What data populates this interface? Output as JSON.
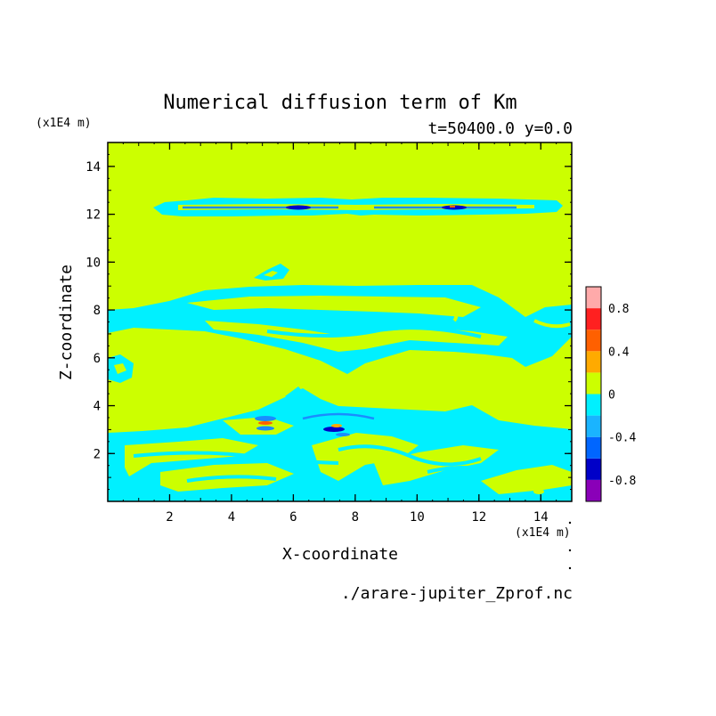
{
  "chart_data": {
    "type": "heatmap",
    "title": "Numerical diffusion term of Km",
    "subtitle": "t=50400.0 y=0.0",
    "xlabel": "X-coordinate",
    "ylabel": "Z-coordinate",
    "x_unit": "(x1E4 m)",
    "y_unit": "(x1E4 m)",
    "source_file": "./arare-jupiter_Zprof.nc",
    "xlim": [
      0,
      15
    ],
    "ylim": [
      0,
      15
    ],
    "x_ticks": [
      2,
      4,
      6,
      8,
      10,
      12,
      14
    ],
    "y_ticks": [
      2,
      4,
      6,
      8,
      10,
      12,
      14
    ],
    "colorbar": {
      "levels": [
        -1.0,
        -0.8,
        -0.6,
        -0.4,
        -0.2,
        0.0,
        0.2,
        0.4,
        0.6,
        0.8,
        1.0
      ],
      "colors": [
        "#8a00b8",
        "#0000c8",
        "#0066ff",
        "#1ab4ff",
        "#00f0ff",
        "#ccff00",
        "#ffaa00",
        "#ff6000",
        "#ff2020",
        "#ffaaaa"
      ],
      "tick_labels": [
        "-0.8",
        "-0.4",
        "0",
        "0.4",
        "0.8"
      ],
      "tick_values": [
        -0.8,
        -0.4,
        0.0,
        0.4,
        0.8
      ]
    },
    "background_value_color": "#ccff00",
    "negative_band_color": "#00f0ff",
    "features": [
      {
        "region": "band",
        "x": [
          1.5,
          14.7
        ],
        "z": [
          11.8,
          12.6
        ],
        "value_range": [
          -0.8,
          0.0
        ]
      },
      {
        "region": "band",
        "x": [
          0.0,
          15.0
        ],
        "z": [
          5.5,
          9.0
        ],
        "value_range": [
          -0.2,
          0.0
        ]
      },
      {
        "region": "band",
        "x": [
          0.0,
          15.0
        ],
        "z": [
          0.0,
          4.5
        ],
        "value_range": [
          -0.8,
          0.4
        ]
      }
    ]
  }
}
